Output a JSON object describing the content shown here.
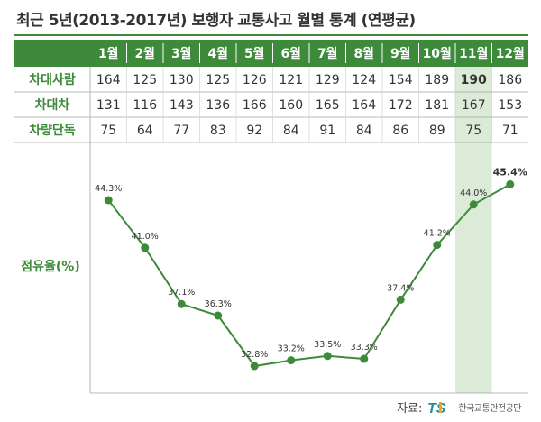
{
  "title": "최근 5년(2013-2017년) 보행자 교통사고 월별 통계 (연평균)",
  "source": {
    "label": "자료:",
    "logo_text": "TS",
    "org": "한국교통안전공단"
  },
  "colors": {
    "header_bg": "#3c8a3a",
    "header_text": "#ffffff",
    "label_text": "#3c8a3a",
    "highlight_bg": "#dcebd8",
    "line": "#3c8a3a",
    "text": "#333333",
    "grid": "#9aa79a"
  },
  "chart_data": [
    {
      "type": "table",
      "columns": [
        "1월",
        "2월",
        "3월",
        "4월",
        "5월",
        "6월",
        "7월",
        "8월",
        "9월",
        "10월",
        "11월",
        "12월"
      ],
      "rows": [
        {
          "label": "차대사람",
          "values": [
            164,
            125,
            130,
            125,
            126,
            121,
            129,
            124,
            154,
            189,
            190,
            186
          ]
        },
        {
          "label": "차대차",
          "values": [
            131,
            116,
            143,
            136,
            166,
            160,
            165,
            164,
            172,
            181,
            167,
            153
          ]
        },
        {
          "label": "차량단독",
          "values": [
            75,
            64,
            77,
            83,
            92,
            84,
            91,
            84,
            86,
            89,
            75,
            71
          ]
        }
      ],
      "highlight_column": "11월",
      "emphasized_cell": {
        "row": "차대사람",
        "column": "11월"
      }
    },
    {
      "type": "line",
      "ylabel": "점유율(%)",
      "categories": [
        "1월",
        "2월",
        "3월",
        "4월",
        "5월",
        "6월",
        "7월",
        "8월",
        "9월",
        "10월",
        "11월",
        "12월"
      ],
      "values": [
        44.3,
        41.0,
        37.1,
        36.3,
        32.8,
        33.2,
        33.5,
        33.3,
        37.4,
        41.2,
        44.0,
        45.4
      ],
      "value_labels": [
        "44.3%",
        "41.0%",
        "37.1%",
        "36.3%",
        "32.8%",
        "33.2%",
        "33.5%",
        "33.3%",
        "37.4%",
        "41.2%",
        "44.0%",
        "45.4%"
      ],
      "emphasized_label": "45.4%",
      "ylim": [
        31.8,
        46.8
      ],
      "grid": false,
      "legend": "none"
    }
  ]
}
